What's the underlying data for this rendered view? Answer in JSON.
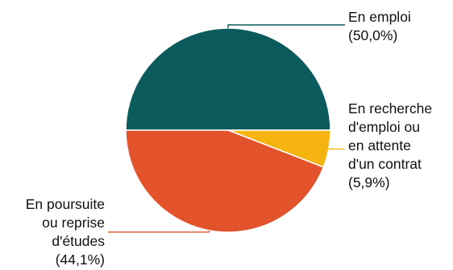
{
  "chart_data": {
    "type": "pie",
    "unit": "%",
    "slices": [
      {
        "label_lines": [
          "En emploi",
          "(50,0%)"
        ],
        "value": 50.0,
        "color": "#0b5a5c"
      },
      {
        "label_lines": [
          "En recherche",
          "d'emploi ou",
          "en attente",
          "d'un contrat",
          "(5,9%)"
        ],
        "value": 5.9,
        "color": "#f5b40f"
      },
      {
        "label_lines": [
          "En poursuite",
          "ou reprise",
          "d'études",
          "(44,1%)"
        ],
        "value": 44.1,
        "color": "#e3532b"
      }
    ],
    "start_angle": "left (9 o'clock)",
    "direction": "clockwise",
    "legend": "none (direct labels with leader lines)"
  }
}
